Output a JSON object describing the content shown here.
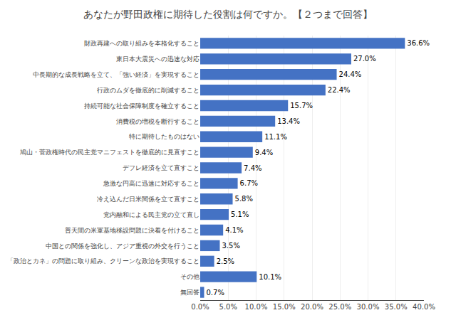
{
  "chart_data": {
    "type": "bar",
    "orientation": "horizontal",
    "title": "あなたが野田政権に期待した役割は何ですか。【２つまで回答】",
    "categories": [
      "財政再建への取り組みを本格化すること",
      "東日本大震災への迅速な対応",
      "中長期的な成長戦略を立て、「強い経済」を実現すること",
      "行政のムダを徹底的に削減すること",
      "持続可能な社会保障制度を確立すること",
      "消費税の増税を断行すること",
      "特に期待したものはない",
      "鳩山・菅政権時代の民主党マニフェストを徹底的に見直すこと",
      "デフレ経済を立て直すこと",
      "急激な円高に迅速に対応すること",
      "冷え込んだ日米関係を立て直すこと",
      "党内融和による民主党の立て直し",
      "普天間の米軍基地移設問題に決着を付けること",
      "中国との関係を強化し、アジア重視の外交を行うこと",
      "「政治とカネ」の問題に取り組み、クリーンな政治を実現すること",
      "その他",
      "無回答"
    ],
    "values": [
      36.6,
      27.0,
      24.4,
      22.4,
      15.7,
      13.4,
      11.1,
      9.4,
      7.4,
      6.7,
      5.8,
      5.1,
      4.1,
      3.5,
      2.5,
      10.1,
      0.7
    ],
    "value_labels": [
      "36.6%",
      "27.0%",
      "24.4%",
      "22.4%",
      "15.7%",
      "13.4%",
      "11.1%",
      "9.4%",
      "7.4%",
      "6.7%",
      "5.8%",
      "5.1%",
      "4.1%",
      "3.5%",
      "2.5%",
      "10.1%",
      "0.7%"
    ],
    "data_labels": true,
    "color": "#4472C4",
    "xlim": [
      0,
      40
    ],
    "xticks": [
      {
        "value": 0,
        "label": "0.0%"
      },
      {
        "value": 5,
        "label": "5.0%"
      },
      {
        "value": 10,
        "label": "10.0%"
      },
      {
        "value": 15,
        "label": "15.0%"
      },
      {
        "value": 20,
        "label": "20.0%"
      },
      {
        "value": 25,
        "label": "25.0%"
      },
      {
        "value": 30,
        "label": "30.0%"
      },
      {
        "value": 35,
        "label": "35.0%"
      },
      {
        "value": 40,
        "label": "40.0%"
      }
    ],
    "grid": true
  }
}
